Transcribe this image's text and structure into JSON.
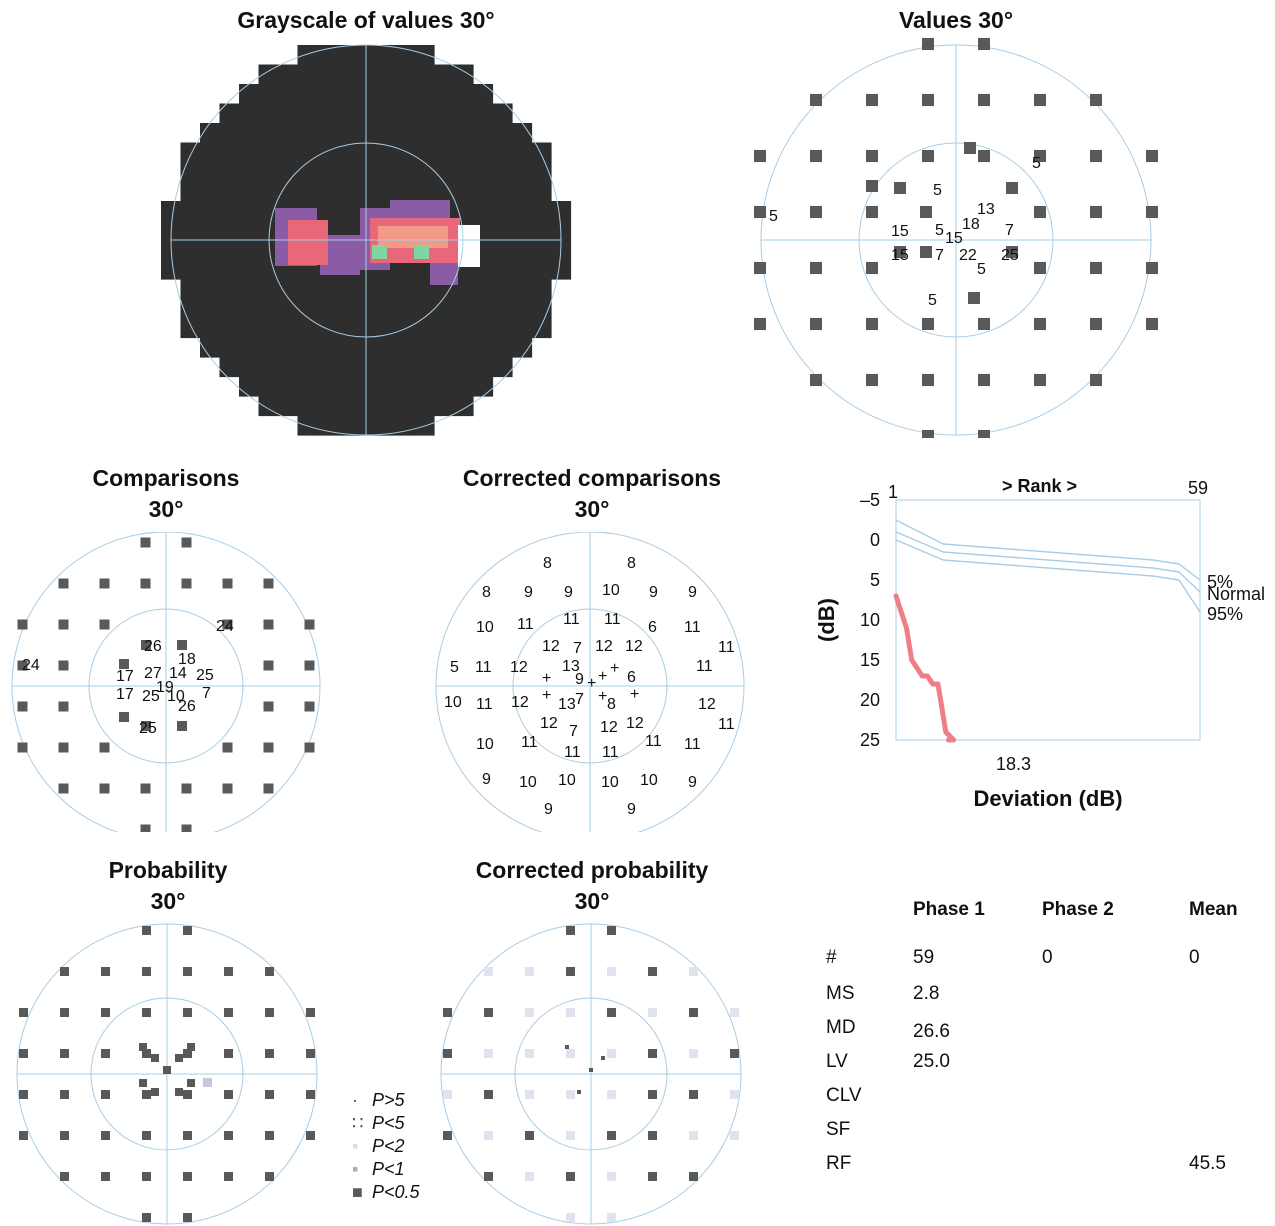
{
  "titles": {
    "grayscale": "Grayscale of values 30°",
    "values": "Values 30°",
    "comparisons_1": "Comparisons",
    "comparisons_2": "30°",
    "corrected_comparisons_1": "Corrected comparisons",
    "corrected_comparisons_2": "30°",
    "probability_1": "Probability",
    "probability_2": "30°",
    "corrected_probability_1": "Corrected probability",
    "corrected_probability_2": "30°"
  },
  "colors": {
    "circle_line": "#a9cde6",
    "marker": "#595959",
    "field_dark": "#2e2e2e",
    "defect_purple": "#8a5ca6",
    "defect_pink": "#e8687a",
    "defect_salmon": "#f29a86",
    "defect_green": "#7fd6a0",
    "curve_normal": "#a9cde6",
    "curve_patient": "#ef7f86"
  },
  "values_field": [
    {
      "label": "5"
    },
    {
      "label": "5"
    },
    {
      "label": "13"
    },
    {
      "label": "5"
    },
    {
      "label": "15"
    },
    {
      "label": "5"
    },
    {
      "label": "15"
    },
    {
      "label": "18"
    },
    {
      "label": "7"
    },
    {
      "label": "15"
    },
    {
      "label": "7"
    },
    {
      "label": "22"
    },
    {
      "label": "5"
    },
    {
      "label": "25"
    },
    {
      "label": "5"
    }
  ],
  "comparisons_field": [
    {
      "label": "24"
    },
    {
      "label": "26"
    },
    {
      "label": "24"
    },
    {
      "label": "18"
    },
    {
      "label": "17"
    },
    {
      "label": "27"
    },
    {
      "label": "14"
    },
    {
      "label": "25"
    },
    {
      "label": "19"
    },
    {
      "label": "17"
    },
    {
      "label": "25"
    },
    {
      "label": "10"
    },
    {
      "label": "7"
    },
    {
      "label": "26"
    },
    {
      "label": "25"
    }
  ],
  "corrected_comparisons_field": [
    {
      "label": "8"
    },
    {
      "label": "8"
    },
    {
      "label": "8"
    },
    {
      "label": "9"
    },
    {
      "label": "9"
    },
    {
      "label": "10"
    },
    {
      "label": "9"
    },
    {
      "label": "9"
    },
    {
      "label": "10"
    },
    {
      "label": "11"
    },
    {
      "label": "11"
    },
    {
      "label": "11"
    },
    {
      "label": "6"
    },
    {
      "label": "11"
    },
    {
      "label": "12"
    },
    {
      "label": "7"
    },
    {
      "label": "12"
    },
    {
      "label": "12"
    },
    {
      "label": "11"
    },
    {
      "label": "5"
    },
    {
      "label": "11"
    },
    {
      "label": "12"
    },
    {
      "label": "13"
    },
    {
      "label": "+"
    },
    {
      "label": "9"
    },
    {
      "label": "+"
    },
    {
      "label": "+"
    },
    {
      "label": "+"
    },
    {
      "label": "6"
    },
    {
      "label": "11"
    },
    {
      "label": "10"
    },
    {
      "label": "11"
    },
    {
      "label": "12"
    },
    {
      "label": "+"
    },
    {
      "label": "13"
    },
    {
      "label": "7"
    },
    {
      "label": "+"
    },
    {
      "label": "8"
    },
    {
      "label": "+"
    },
    {
      "label": "12"
    },
    {
      "label": "12"
    },
    {
      "label": "7"
    },
    {
      "label": "12"
    },
    {
      "label": "12"
    },
    {
      "label": "11"
    },
    {
      "label": "10"
    },
    {
      "label": "11"
    },
    {
      "label": "11"
    },
    {
      "label": "11"
    },
    {
      "label": "11"
    },
    {
      "label": "11"
    },
    {
      "label": "9"
    },
    {
      "label": "10"
    },
    {
      "label": "10"
    },
    {
      "label": "10"
    },
    {
      "label": "10"
    },
    {
      "label": "9"
    },
    {
      "label": "9"
    },
    {
      "label": "9"
    }
  ],
  "legend": [
    {
      "icon": "dot-icon",
      "symbol": "·",
      "label": "P>5"
    },
    {
      "icon": "dotted-square-icon",
      "symbol": "∷",
      "label": "P<5"
    },
    {
      "icon": "light-square-icon",
      "symbol": "▪",
      "label": "P<2"
    },
    {
      "icon": "mid-square-icon",
      "symbol": "▪",
      "label": "P<1"
    },
    {
      "icon": "dark-square-icon",
      "symbol": "■",
      "label": "P<0.5"
    }
  ],
  "chart_data": {
    "type": "line",
    "title": "> Rank >",
    "xlabel": "Deviation (dB)",
    "ylabel": "(dB)",
    "x_tick_labels": [
      "1",
      "59"
    ],
    "y_ticks": [
      "–5",
      "0",
      "5",
      "10",
      "15",
      "20",
      "25"
    ],
    "ylim": [
      -5,
      25
    ],
    "xlim": [
      1,
      59
    ],
    "annotation": "18.3",
    "series": [
      {
        "name": "5%",
        "points": [
          [
            1,
            -2.5
          ],
          [
            10,
            0.5
          ],
          [
            20,
            1.0
          ],
          [
            30,
            1.5
          ],
          [
            40,
            2.0
          ],
          [
            50,
            2.5
          ],
          [
            55,
            3.0
          ],
          [
            59,
            5.0
          ]
        ]
      },
      {
        "name": "Normal",
        "points": [
          [
            1,
            -1.0
          ],
          [
            10,
            1.5
          ],
          [
            20,
            2.0
          ],
          [
            30,
            2.5
          ],
          [
            40,
            3.0
          ],
          [
            50,
            3.5
          ],
          [
            55,
            4.0
          ],
          [
            59,
            6.5
          ]
        ]
      },
      {
        "name": "95%",
        "points": [
          [
            1,
            0.0
          ],
          [
            10,
            2.5
          ],
          [
            20,
            3.0
          ],
          [
            30,
            3.5
          ],
          [
            40,
            4.0
          ],
          [
            50,
            4.5
          ],
          [
            55,
            5.0
          ],
          [
            59,
            9.0
          ]
        ]
      },
      {
        "points": [
          [
            1,
            7
          ],
          [
            2,
            9
          ],
          [
            3,
            11
          ],
          [
            3.5,
            13
          ],
          [
            4,
            15
          ],
          [
            5,
            16
          ],
          [
            6,
            17
          ],
          [
            7,
            17
          ],
          [
            8,
            18
          ],
          [
            9,
            18
          ],
          [
            9.5,
            20
          ],
          [
            10,
            22
          ],
          [
            10.5,
            24
          ],
          [
            12,
            25
          ],
          [
            11,
            25
          ]
        ]
      }
    ]
  },
  "stats": {
    "headers": [
      "Phase 1",
      "Phase 2",
      "Mean"
    ],
    "rows": [
      {
        "label": "#",
        "phase1": "59",
        "phase2": "0",
        "mean": "0"
      },
      {
        "label": "MS",
        "phase1": "2.8",
        "phase2": "",
        "mean": ""
      },
      {
        "label": "MD",
        "phase1": "26.6",
        "phase2": "",
        "mean": ""
      },
      {
        "label": "LV",
        "phase1": "25.0",
        "phase2": "",
        "mean": ""
      },
      {
        "label": "CLV",
        "phase1": "",
        "phase2": "",
        "mean": ""
      },
      {
        "label": "SF",
        "phase1": "",
        "phase2": "",
        "mean": ""
      },
      {
        "label": "RF",
        "phase1": "",
        "phase2": "",
        "mean": "45.5"
      }
    ]
  }
}
